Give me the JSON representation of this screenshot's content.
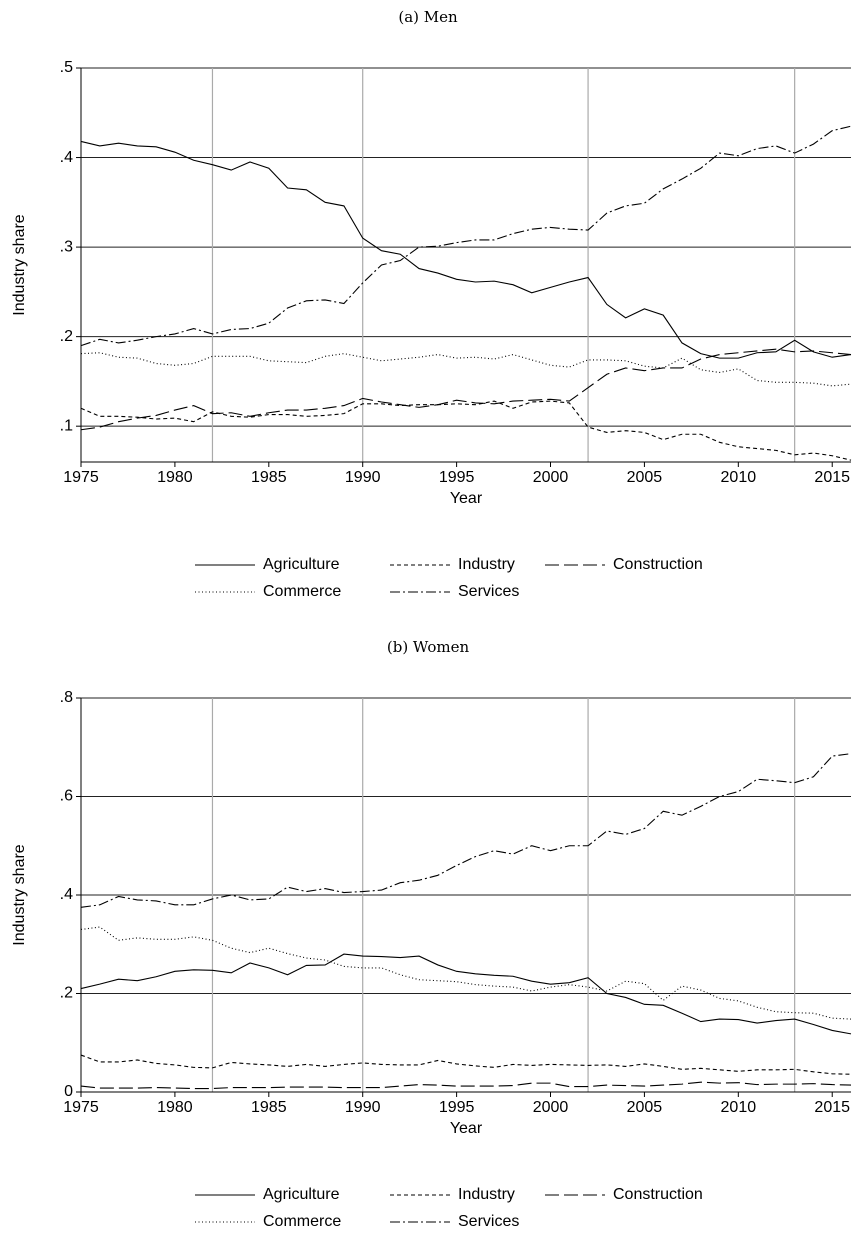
{
  "chart_data": [
    {
      "type": "line",
      "title": "(a) Men",
      "xlabel": "Year",
      "ylabel": "Industry share",
      "x": [
        1975,
        1976,
        1977,
        1978,
        1979,
        1980,
        1981,
        1982,
        1983,
        1984,
        1985,
        1986,
        1987,
        1988,
        1989,
        1990,
        1991,
        1992,
        1993,
        1994,
        1995,
        1996,
        1997,
        1998,
        1999,
        2000,
        2001,
        2002,
        2003,
        2004,
        2005,
        2006,
        2007,
        2008,
        2009,
        2010,
        2011,
        2012,
        2013,
        2014,
        2015,
        2016
      ],
      "xlim": [
        1975,
        2016
      ],
      "xticks": [
        1975,
        1980,
        1985,
        1990,
        1995,
        2000,
        2005,
        2010,
        2015
      ],
      "ylim": [
        0.06,
        0.5
      ],
      "yticks": [
        {
          "value": 0.1,
          "label": ".1"
        },
        {
          "value": 0.2,
          "label": ".2"
        },
        {
          "value": 0.3,
          "label": ".3"
        },
        {
          "value": 0.4,
          "label": ".4"
        },
        {
          "value": 0.5,
          "label": ".5"
        }
      ],
      "grid": true,
      "vlines": [
        1982,
        1990,
        2002,
        2013
      ],
      "series": [
        {
          "name": "Agriculture",
          "color": "#000000",
          "dash": "solid",
          "values": [
            0.418,
            0.413,
            0.416,
            0.413,
            0.412,
            0.406,
            0.397,
            0.392,
            0.386,
            0.395,
            0.388,
            0.366,
            0.364,
            0.35,
            0.346,
            0.31,
            0.296,
            0.292,
            0.276,
            0.271,
            0.264,
            0.261,
            0.262,
            0.258,
            0.249,
            0.255,
            0.261,
            0.266,
            0.236,
            0.221,
            0.231,
            0.224,
            0.193,
            0.181,
            0.176,
            0.176,
            0.182,
            0.183,
            0.196,
            0.183,
            0.177,
            0.18
          ]
        },
        {
          "name": "Industry",
          "color": "#000000",
          "dash": "short",
          "values": [
            0.12,
            0.111,
            0.111,
            0.11,
            0.108,
            0.109,
            0.105,
            0.116,
            0.111,
            0.11,
            0.113,
            0.113,
            0.111,
            0.112,
            0.114,
            0.125,
            0.125,
            0.123,
            0.124,
            0.124,
            0.125,
            0.124,
            0.128,
            0.12,
            0.127,
            0.128,
            0.126,
            0.099,
            0.093,
            0.095,
            0.093,
            0.085,
            0.091,
            0.091,
            0.082,
            0.077,
            0.075,
            0.073,
            0.068,
            0.07,
            0.067,
            0.062
          ]
        },
        {
          "name": "Construction",
          "color": "#000000",
          "dash": "long",
          "values": [
            0.096,
            0.099,
            0.105,
            0.109,
            0.112,
            0.118,
            0.123,
            0.114,
            0.115,
            0.111,
            0.115,
            0.118,
            0.118,
            0.12,
            0.123,
            0.131,
            0.127,
            0.124,
            0.121,
            0.124,
            0.129,
            0.126,
            0.125,
            0.128,
            0.129,
            0.13,
            0.128,
            0.143,
            0.158,
            0.165,
            0.162,
            0.165,
            0.165,
            0.175,
            0.18,
            0.182,
            0.184,
            0.186,
            0.183,
            0.184,
            0.182,
            0.18
          ]
        },
        {
          "name": "Commerce",
          "color": "#000000",
          "dash": "dot",
          "values": [
            0.181,
            0.182,
            0.177,
            0.176,
            0.17,
            0.168,
            0.17,
            0.178,
            0.178,
            0.178,
            0.173,
            0.172,
            0.171,
            0.178,
            0.181,
            0.177,
            0.173,
            0.175,
            0.177,
            0.18,
            0.176,
            0.177,
            0.175,
            0.18,
            0.174,
            0.168,
            0.166,
            0.174,
            0.174,
            0.173,
            0.167,
            0.165,
            0.176,
            0.163,
            0.16,
            0.164,
            0.151,
            0.149,
            0.149,
            0.148,
            0.145,
            0.147
          ]
        },
        {
          "name": "Services",
          "color": "#000000",
          "dash": "dashdot",
          "values": [
            0.19,
            0.197,
            0.193,
            0.196,
            0.2,
            0.203,
            0.209,
            0.203,
            0.208,
            0.209,
            0.215,
            0.232,
            0.24,
            0.241,
            0.237,
            0.26,
            0.28,
            0.285,
            0.3,
            0.301,
            0.305,
            0.308,
            0.308,
            0.315,
            0.32,
            0.322,
            0.32,
            0.319,
            0.338,
            0.346,
            0.349,
            0.365,
            0.376,
            0.388,
            0.405,
            0.402,
            0.41,
            0.413,
            0.405,
            0.415,
            0.43,
            0.435
          ]
        }
      ]
    },
    {
      "type": "line",
      "title": "(b) Women",
      "xlabel": "Year",
      "ylabel": "Industry share",
      "x": [
        1975,
        1976,
        1977,
        1978,
        1979,
        1980,
        1981,
        1982,
        1983,
        1984,
        1985,
        1986,
        1987,
        1988,
        1989,
        1990,
        1991,
        1992,
        1993,
        1994,
        1995,
        1996,
        1997,
        1998,
        1999,
        2000,
        2001,
        2002,
        2003,
        2004,
        2005,
        2006,
        2007,
        2008,
        2009,
        2010,
        2011,
        2012,
        2013,
        2014,
        2015,
        2016
      ],
      "xlim": [
        1975,
        2016
      ],
      "xticks": [
        1975,
        1980,
        1985,
        1990,
        1995,
        2000,
        2005,
        2010,
        2015
      ],
      "ylim": [
        0,
        0.8
      ],
      "yticks": [
        0,
        {
          "value": 0.2,
          "label": ".2"
        },
        {
          "value": 0.4,
          "label": ".4"
        },
        {
          "value": 0.6,
          "label": ".6"
        },
        {
          "value": 0.8,
          "label": ".8"
        }
      ],
      "grid": true,
      "vlines": [
        1982,
        1990,
        2002,
        2013
      ],
      "series": [
        {
          "name": "Agriculture",
          "color": "#000000",
          "dash": "solid",
          "values": [
            0.21,
            0.219,
            0.229,
            0.226,
            0.234,
            0.245,
            0.248,
            0.247,
            0.242,
            0.262,
            0.252,
            0.238,
            0.257,
            0.258,
            0.28,
            0.276,
            0.275,
            0.273,
            0.276,
            0.258,
            0.245,
            0.24,
            0.237,
            0.235,
            0.225,
            0.219,
            0.222,
            0.232,
            0.2,
            0.192,
            0.178,
            0.176,
            0.16,
            0.143,
            0.148,
            0.147,
            0.14,
            0.145,
            0.148,
            0.137,
            0.125,
            0.118
          ]
        },
        {
          "name": "Industry",
          "color": "#000000",
          "dash": "short",
          "values": [
            0.075,
            0.061,
            0.061,
            0.065,
            0.058,
            0.055,
            0.05,
            0.049,
            0.06,
            0.057,
            0.055,
            0.052,
            0.056,
            0.052,
            0.056,
            0.059,
            0.056,
            0.055,
            0.055,
            0.064,
            0.057,
            0.053,
            0.05,
            0.056,
            0.054,
            0.056,
            0.055,
            0.054,
            0.055,
            0.052,
            0.057,
            0.052,
            0.046,
            0.048,
            0.045,
            0.042,
            0.045,
            0.045,
            0.046,
            0.041,
            0.037,
            0.036
          ]
        },
        {
          "name": "Construction",
          "color": "#000000",
          "dash": "long",
          "values": [
            0.012,
            0.008,
            0.008,
            0.008,
            0.009,
            0.008,
            0.007,
            0.007,
            0.009,
            0.009,
            0.009,
            0.01,
            0.01,
            0.01,
            0.009,
            0.009,
            0.009,
            0.012,
            0.015,
            0.014,
            0.012,
            0.012,
            0.012,
            0.013,
            0.018,
            0.018,
            0.011,
            0.011,
            0.014,
            0.013,
            0.012,
            0.014,
            0.016,
            0.02,
            0.018,
            0.019,
            0.015,
            0.016,
            0.016,
            0.017,
            0.015,
            0.014
          ]
        },
        {
          "name": "Commerce",
          "color": "#000000",
          "dash": "dot",
          "values": [
            0.33,
            0.335,
            0.308,
            0.313,
            0.31,
            0.31,
            0.315,
            0.308,
            0.292,
            0.283,
            0.292,
            0.281,
            0.272,
            0.268,
            0.255,
            0.252,
            0.252,
            0.238,
            0.228,
            0.226,
            0.224,
            0.218,
            0.215,
            0.213,
            0.205,
            0.213,
            0.218,
            0.213,
            0.205,
            0.225,
            0.22,
            0.186,
            0.215,
            0.207,
            0.19,
            0.185,
            0.172,
            0.163,
            0.161,
            0.16,
            0.15,
            0.148
          ]
        },
        {
          "name": "Services",
          "color": "#000000",
          "dash": "dashdot",
          "values": [
            0.375,
            0.38,
            0.397,
            0.39,
            0.388,
            0.38,
            0.38,
            0.392,
            0.4,
            0.39,
            0.392,
            0.416,
            0.407,
            0.413,
            0.405,
            0.407,
            0.41,
            0.425,
            0.43,
            0.44,
            0.46,
            0.478,
            0.49,
            0.483,
            0.5,
            0.49,
            0.5,
            0.5,
            0.53,
            0.523,
            0.535,
            0.57,
            0.562,
            0.58,
            0.6,
            0.61,
            0.635,
            0.632,
            0.628,
            0.64,
            0.682,
            0.687
          ]
        }
      ]
    }
  ]
}
